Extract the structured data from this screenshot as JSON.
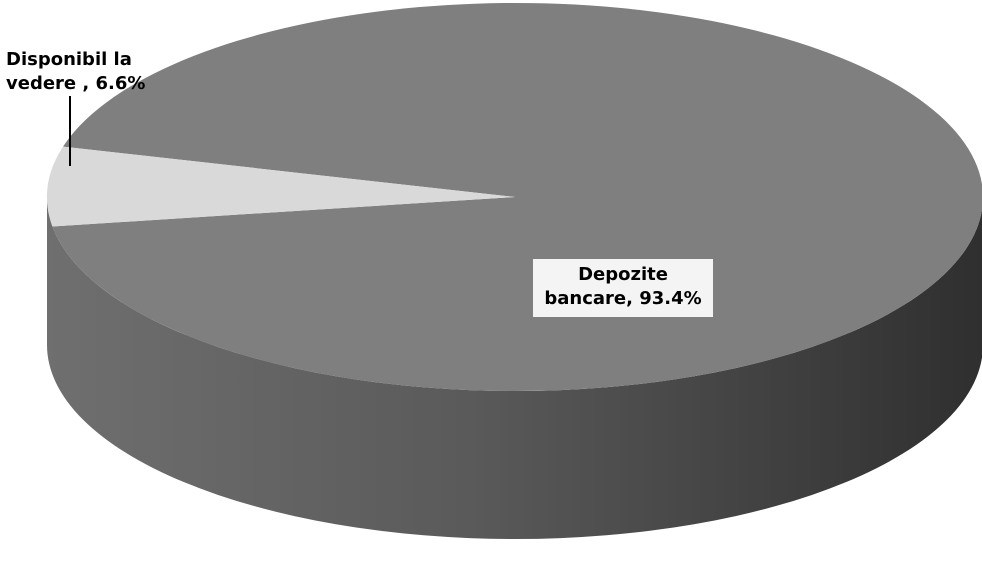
{
  "chart_data": {
    "type": "pie",
    "title": "",
    "slices": [
      {
        "name": "Disponibil la vedere",
        "value": 6.6,
        "label_line1": "Disponibil la",
        "label_line2": "vedere , 6.6%",
        "color": "#d9d9d9"
      },
      {
        "name": "Depozite bancare",
        "value": 93.4,
        "label_line1": "Depozite",
        "label_line2": "bancare, 93.4%",
        "color": "#7f7f7f"
      }
    ],
    "style": "3d",
    "legend": "none",
    "colors": {
      "slice_light": "#d9d9d9",
      "slice_dark": "#7f7f7f",
      "side_dark_start": "#666666",
      "side_dark_end": "#2f2f2f",
      "label_background": "#f4f4f4"
    }
  }
}
